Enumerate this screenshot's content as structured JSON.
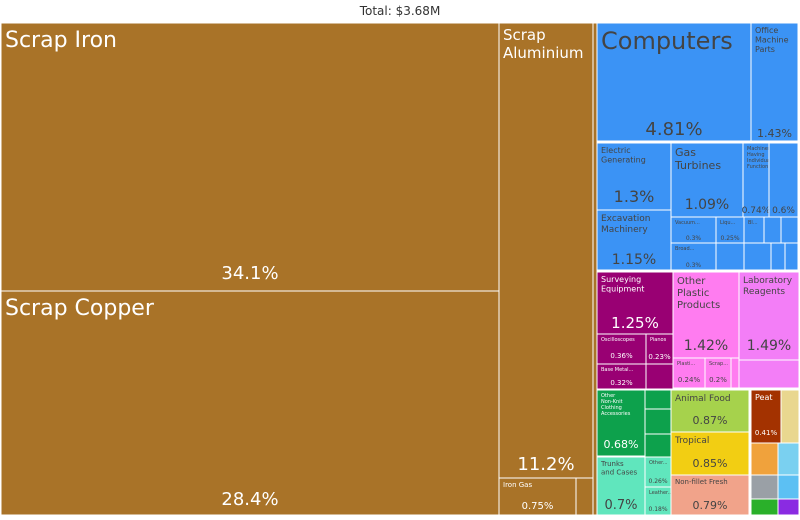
{
  "chart_data": {
    "type": "treemap",
    "title": "Total: $3.68M",
    "colors": {
      "metals": "#a97328",
      "machines": "#3b93f5",
      "instruments": "#990073",
      "chemicals_plastics": "#f37ef7",
      "plastics": "#ff7cf0",
      "textiles": "#0da14c",
      "animal_products": "#a6d24c",
      "vegetable_products": "#f2ce13",
      "animal_hides": "#60e6bd",
      "fish": "#f1a38a",
      "mineral_products": "#a33200",
      "stone": "#e1183e"
    },
    "items": [
      {
        "label": "Scrap Iron",
        "value": "34.1%",
        "group": "metals"
      },
      {
        "label": "Scrap Copper",
        "value": "28.4%",
        "group": "metals"
      },
      {
        "label": "Scrap Aluminium",
        "value": "11.2%",
        "group": "metals"
      },
      {
        "label": "Iron Gas Containers",
        "value": "0.75%",
        "group": "metals"
      },
      {
        "label": "Computers",
        "value": "4.81%",
        "group": "machines"
      },
      {
        "label": "Office Machine Parts",
        "value": "1.43%",
        "group": "machines"
      },
      {
        "label": "Electric Generating Sets",
        "value": "1.3%",
        "group": "machines"
      },
      {
        "label": "Gas Turbines",
        "value": "1.09%",
        "group": "machines"
      },
      {
        "label": "Machinery Having Individual Functions",
        "value": "0.74%",
        "group": "machines"
      },
      {
        "label": "",
        "value": "0.6%",
        "group": "machines"
      },
      {
        "label": "Excavation Machinery",
        "value": "1.15%",
        "group": "machines"
      },
      {
        "label": "Vacuum...",
        "value": "0.3%",
        "group": "machines"
      },
      {
        "label": "Liqu...",
        "value": "0.25%",
        "group": "machines"
      },
      {
        "label": "Bl...",
        "value": "",
        "group": "machines"
      },
      {
        "label": "Broad...",
        "value": "0.3%",
        "group": "machines"
      },
      {
        "label": "Surveying Equipment",
        "value": "1.25%",
        "group": "instruments"
      },
      {
        "label": "Oscilloscopes",
        "value": "0.36%",
        "group": "instruments"
      },
      {
        "label": "Pianos",
        "value": "0.23%",
        "group": "instruments"
      },
      {
        "label": "Base Metal...",
        "value": "0.32%",
        "group": "instruments"
      },
      {
        "label": "Other Plastic Products",
        "value": "1.42%",
        "group": "plastics"
      },
      {
        "label": "Plasti...",
        "value": "0.24%",
        "group": "plastics"
      },
      {
        "label": "Scrap...",
        "value": "0.2%",
        "group": "plastics"
      },
      {
        "label": "Laboratory Reagents",
        "value": "1.49%",
        "group": "chemicals_plastics"
      },
      {
        "label": "Other Non-Knit Clothing Accessories",
        "value": "0.68%",
        "group": "textiles"
      },
      {
        "label": "Animal Food",
        "value": "0.87%",
        "group": "animal_products"
      },
      {
        "label": "Tropical Fruits",
        "value": "0.85%",
        "group": "vegetable_products"
      },
      {
        "label": "Peat",
        "value": "0.41%",
        "group": "mineral_products"
      },
      {
        "label": "Trunks and Cases",
        "value": "0.7%",
        "group": "animal_hides"
      },
      {
        "label": "Other...",
        "value": "0.26%",
        "group": "animal_hides"
      },
      {
        "label": "Leather...",
        "value": "0.18%",
        "group": "animal_hides"
      },
      {
        "label": "Non-fillet Fresh Fish",
        "value": "0.79%",
        "group": "fish"
      }
    ]
  }
}
